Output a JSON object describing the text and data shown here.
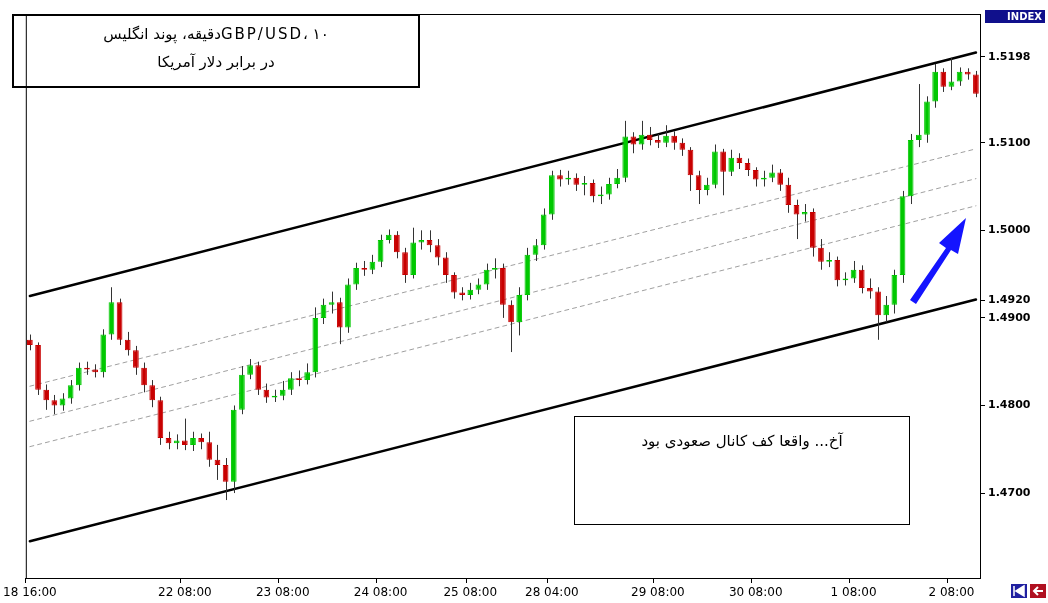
{
  "chart_data": {
    "type": "candlestick",
    "title": "GBP/USD، ۱۰دقیقه، پوند انگلیس در برابر دلار آمریکا",
    "annotations": [
      "آخ... واقعا کف کانال صعودی بود",
      "INDEX"
    ],
    "categories": [
      "18 16:00",
      null,
      null,
      null,
      null,
      null,
      null,
      null,
      null,
      null,
      null,
      null,
      null,
      null,
      null,
      null,
      null,
      null,
      null,
      "22 08:00",
      null,
      null,
      null,
      null,
      null,
      null,
      null,
      null,
      null,
      null,
      null,
      "23 08:00",
      null,
      null,
      null,
      null,
      null,
      null,
      null,
      null,
      null,
      null,
      null,
      "24 08:00",
      null,
      null,
      null,
      null,
      null,
      null,
      null,
      null,
      null,
      null,
      "25 08:00",
      null,
      null,
      null,
      null,
      null,
      null,
      null,
      null,
      null,
      "28 04:00",
      null,
      null,
      null,
      null,
      null,
      null,
      null,
      null,
      null,
      null,
      null,
      null,
      "29 08:00",
      null,
      null,
      null,
      null,
      null,
      null,
      null,
      null,
      null,
      null,
      null,
      "30 08:00",
      null,
      null,
      null,
      null,
      null,
      null,
      null,
      null,
      null,
      null,
      null,
      "1 08:00",
      null,
      null,
      null,
      null,
      null,
      null,
      null,
      null,
      null,
      null,
      null,
      "2 08:00",
      null,
      null,
      null
    ],
    "ohlc": [
      [
        1.4875,
        1.4881,
        1.4863,
        1.4869
      ],
      [
        1.4869,
        1.4872,
        1.4812,
        1.4818
      ],
      [
        1.4818,
        1.4824,
        1.4795,
        1.4806
      ],
      [
        1.4806,
        1.4812,
        1.479,
        1.48
      ],
      [
        1.48,
        1.4814,
        1.4794,
        1.4808
      ],
      [
        1.4808,
        1.4829,
        1.4802,
        1.4823
      ],
      [
        1.4823,
        1.4849,
        1.4817,
        1.4843
      ],
      [
        1.4843,
        1.485,
        1.4835,
        1.4841
      ],
      [
        1.4841,
        1.4847,
        1.4832,
        1.4838
      ],
      [
        1.4838,
        1.4887,
        1.4832,
        1.4881
      ],
      [
        1.4881,
        1.4935,
        1.4875,
        1.4918
      ],
      [
        1.4918,
        1.4922,
        1.4869,
        1.4875
      ],
      [
        1.4875,
        1.4884,
        1.4857,
        1.4863
      ],
      [
        1.4863,
        1.4868,
        1.4835,
        1.4843
      ],
      [
        1.4843,
        1.4849,
        1.4815,
        1.4823
      ],
      [
        1.4823,
        1.4829,
        1.4798,
        1.4806
      ],
      [
        1.4806,
        1.481,
        1.4755,
        1.4763
      ],
      [
        1.4763,
        1.477,
        1.475,
        1.4757
      ],
      [
        1.4757,
        1.4767,
        1.475,
        1.476
      ],
      [
        1.476,
        1.4785,
        1.4749,
        1.4755
      ],
      [
        1.4755,
        1.477,
        1.4748,
        1.4763
      ],
      [
        1.4763,
        1.4768,
        1.475,
        1.4758
      ],
      [
        1.4758,
        1.477,
        1.473,
        1.4738
      ],
      [
        1.4738,
        1.4755,
        1.4715,
        1.4732
      ],
      [
        1.4732,
        1.474,
        1.4692,
        1.4713
      ],
      [
        1.4713,
        1.48,
        1.47,
        1.4795
      ],
      [
        1.4795,
        1.4845,
        1.479,
        1.4835
      ],
      [
        1.4835,
        1.4853,
        1.483,
        1.4846
      ],
      [
        1.4846,
        1.485,
        1.4812,
        1.4818
      ],
      [
        1.4818,
        1.4825,
        1.4803,
        1.4809
      ],
      [
        1.4809,
        1.4818,
        1.4804,
        1.4811
      ],
      [
        1.4811,
        1.4828,
        1.4806,
        1.4818
      ],
      [
        1.4818,
        1.4838,
        1.4812,
        1.4831
      ],
      [
        1.4831,
        1.484,
        1.4822,
        1.4829
      ],
      [
        1.4829,
        1.4848,
        1.4824,
        1.4838
      ],
      [
        1.4838,
        1.4912,
        1.4832,
        1.49
      ],
      [
        1.49,
        1.4922,
        1.4893,
        1.4915
      ],
      [
        1.4915,
        1.493,
        1.4905,
        1.4918
      ],
      [
        1.4918,
        1.4923,
        1.487,
        1.4889
      ],
      [
        1.4889,
        1.4945,
        1.4883,
        1.4938
      ],
      [
        1.4938,
        1.4963,
        1.4932,
        1.4957
      ],
      [
        1.4957,
        1.4965,
        1.4948,
        1.4955
      ],
      [
        1.4955,
        1.4972,
        1.495,
        1.4964
      ],
      [
        1.4964,
        1.4995,
        1.4958,
        1.4989
      ],
      [
        1.4989,
        1.5001,
        1.4985,
        1.4995
      ],
      [
        1.4995,
        1.4999,
        1.4968,
        1.4975
      ],
      [
        1.4975,
        1.498,
        1.494,
        1.4949
      ],
      [
        1.4949,
        1.5003,
        1.4945,
        1.4986
      ],
      [
        1.4986,
        1.5,
        1.4978,
        1.4989
      ],
      [
        1.4989,
        1.5,
        1.4975,
        1.4983
      ],
      [
        1.4983,
        1.499,
        1.496,
        1.4969
      ],
      [
        1.4969,
        1.4975,
        1.494,
        1.4949
      ],
      [
        1.4949,
        1.4952,
        1.4922,
        1.4929
      ],
      [
        1.4929,
        1.4935,
        1.492,
        1.4926
      ],
      [
        1.4926,
        1.494,
        1.4921,
        1.4932
      ],
      [
        1.4932,
        1.4945,
        1.4927,
        1.4938
      ],
      [
        1.4938,
        1.4962,
        1.4932,
        1.4955
      ],
      [
        1.4955,
        1.4968,
        1.4945,
        1.4957
      ],
      [
        1.4957,
        1.4962,
        1.49,
        1.4915
      ],
      [
        1.4915,
        1.492,
        1.4861,
        1.4895
      ],
      [
        1.4895,
        1.4935,
        1.488,
        1.4926
      ],
      [
        1.4926,
        1.498,
        1.492,
        1.4972
      ],
      [
        1.4972,
        1.499,
        1.4965,
        1.4983
      ],
      [
        1.4983,
        1.5025,
        1.4978,
        1.5018
      ],
      [
        1.5018,
        1.5068,
        1.5012,
        1.5063
      ],
      [
        1.5063,
        1.5069,
        1.505,
        1.5058
      ],
      [
        1.5058,
        1.5068,
        1.5052,
        1.506
      ],
      [
        1.506,
        1.5065,
        1.5045,
        1.5052
      ],
      [
        1.5052,
        1.5062,
        1.504,
        1.5054
      ],
      [
        1.5054,
        1.5058,
        1.5032,
        1.5039
      ],
      [
        1.5039,
        1.505,
        1.503,
        1.5041
      ],
      [
        1.5041,
        1.506,
        1.5035,
        1.5053
      ],
      [
        1.5053,
        1.507,
        1.5048,
        1.506
      ],
      [
        1.506,
        1.5125,
        1.5055,
        1.5107
      ],
      [
        1.5107,
        1.5112,
        1.5088,
        1.5098
      ],
      [
        1.5098,
        1.5125,
        1.5092,
        1.5109
      ],
      [
        1.5109,
        1.5118,
        1.5097,
        1.5103
      ],
      [
        1.5103,
        1.511,
        1.5094,
        1.51
      ],
      [
        1.51,
        1.512,
        1.5095,
        1.5108
      ],
      [
        1.5108,
        1.5113,
        1.5092,
        1.51
      ],
      [
        1.51,
        1.5105,
        1.5085,
        1.5092
      ],
      [
        1.5092,
        1.5095,
        1.5045,
        1.5063
      ],
      [
        1.5063,
        1.5068,
        1.503,
        1.5046
      ],
      [
        1.5046,
        1.506,
        1.504,
        1.5052
      ],
      [
        1.5052,
        1.5098,
        1.5048,
        1.509
      ],
      [
        1.509,
        1.5093,
        1.504,
        1.5067
      ],
      [
        1.5067,
        1.5092,
        1.5062,
        1.5083
      ],
      [
        1.5083,
        1.5088,
        1.507,
        1.5077
      ],
      [
        1.5077,
        1.5082,
        1.5062,
        1.5069
      ],
      [
        1.5069,
        1.5072,
        1.505,
        1.5058
      ],
      [
        1.5058,
        1.5068,
        1.505,
        1.506
      ],
      [
        1.506,
        1.5075,
        1.5055,
        1.5066
      ],
      [
        1.5066,
        1.507,
        1.5045,
        1.5052
      ],
      [
        1.5052,
        1.506,
        1.502,
        1.5029
      ],
      [
        1.5029,
        1.5035,
        1.499,
        1.5018
      ],
      [
        1.5018,
        1.503,
        1.501,
        1.5021
      ],
      [
        1.5021,
        1.5025,
        1.497,
        1.498
      ],
      [
        1.498,
        1.499,
        1.4955,
        1.4964
      ],
      [
        1.4964,
        1.4975,
        1.4958,
        1.4966
      ],
      [
        1.4966,
        1.497,
        1.4936,
        1.4943
      ],
      [
        1.4943,
        1.4952,
        1.4937,
        1.4945
      ],
      [
        1.4945,
        1.4965,
        1.494,
        1.4955
      ],
      [
        1.4955,
        1.496,
        1.4928,
        1.4934
      ],
      [
        1.4934,
        1.4945,
        1.4922,
        1.493
      ],
      [
        1.493,
        1.4935,
        1.4875,
        1.4903
      ],
      [
        1.4903,
        1.4925,
        1.4895,
        1.4915
      ],
      [
        1.4915,
        1.4955,
        1.4905,
        1.4949
      ],
      [
        1.4949,
        1.5045,
        1.494,
        1.5039
      ],
      [
        1.5039,
        1.511,
        1.503,
        1.5103
      ],
      [
        1.5103,
        1.5167,
        1.5095,
        1.5109
      ],
      [
        1.5109,
        1.5153,
        1.51,
        1.5147
      ],
      [
        1.5147,
        1.519,
        1.514,
        1.5181
      ],
      [
        1.5181,
        1.5185,
        1.5158,
        1.5164
      ],
      [
        1.5164,
        1.5197,
        1.516,
        1.517
      ],
      [
        1.517,
        1.5186,
        1.5165,
        1.5181
      ],
      [
        1.5181,
        1.5185,
        1.5172,
        1.5178
      ],
      [
        1.5178,
        1.5182,
        1.5152,
        1.5156
      ]
    ],
    "colors": [
      "#c80000",
      "#c80000",
      "#c80000",
      "#c80000",
      "#00c800",
      "#00c800",
      "#00c800",
      "#c80000",
      "#c80000",
      "#00c800",
      "#00c800",
      "#c80000",
      "#c80000",
      "#c80000",
      "#c80000",
      "#c80000",
      "#c80000",
      "#c80000",
      "#00c800",
      "#c80000",
      "#00c800",
      "#c80000",
      "#c80000",
      "#c80000",
      "#c80000",
      "#00c800",
      "#00c800",
      "#00c800",
      "#c80000",
      "#c80000",
      "#00c800",
      "#00c800",
      "#00c800",
      "#c80000",
      "#00c800",
      "#00c800",
      "#00c800",
      "#00c800",
      "#c80000",
      "#00c800",
      "#00c800",
      "#c80000",
      "#00c800",
      "#00c800",
      "#00c800",
      "#c80000",
      "#c80000",
      "#00c800",
      "#00c800",
      "#c80000",
      "#c80000",
      "#c80000",
      "#c80000",
      "#c80000",
      "#00c800",
      "#00c800",
      "#00c800",
      "#00c800",
      "#c80000",
      "#c80000",
      "#00c800",
      "#00c800",
      "#00c800",
      "#00c800",
      "#00c800",
      "#c80000",
      "#00c800",
      "#c80000",
      "#00c800",
      "#c80000",
      "#00c800",
      "#00c800",
      "#00c800",
      "#00c800",
      "#c80000",
      "#00c800",
      "#c80000",
      "#c80000",
      "#00c800",
      "#c80000",
      "#c80000",
      "#c80000",
      "#c80000",
      "#00c800",
      "#00c800",
      "#c80000",
      "#00c800",
      "#c80000",
      "#c80000",
      "#c80000",
      "#00c800",
      "#00c800",
      "#c80000",
      "#c80000",
      "#c80000",
      "#00c800",
      "#c80000",
      "#c80000",
      "#00c800",
      "#c80000",
      "#00c800",
      "#00c800",
      "#c80000",
      "#c80000",
      "#c80000",
      "#00c800",
      "#00c800",
      "#00c800",
      "#00c800",
      "#00c800",
      "#00c800",
      "#00c800",
      "#c80000",
      "#00c800",
      "#00c800",
      "#c80000",
      "#c80000"
    ],
    "series": [
      {
        "type": "line",
        "color": "#000000",
        "line_style": "solid",
        "values": [
          1.4925,
          null,
          null,
          null,
          null,
          null,
          null,
          null,
          null,
          null,
          null,
          null,
          null,
          null,
          null,
          null,
          null,
          null,
          null,
          null,
          null,
          null,
          null,
          null,
          null,
          null,
          null,
          null,
          null,
          null,
          null,
          null,
          null,
          null,
          null,
          null,
          null,
          null,
          null,
          null,
          null,
          null,
          null,
          null,
          null,
          null,
          null,
          null,
          null,
          null,
          null,
          null,
          null,
          null,
          null,
          null,
          null,
          null,
          null,
          null,
          null,
          null,
          null,
          null,
          null,
          null,
          null,
          null,
          null,
          null,
          null,
          null,
          null,
          null,
          null,
          null,
          null,
          null,
          null,
          null,
          null,
          null,
          null,
          null,
          null,
          null,
          null,
          null,
          null,
          null,
          null,
          null,
          null,
          null,
          null,
          null,
          null,
          null,
          null,
          null,
          null,
          null,
          null,
          null,
          null,
          null,
          null,
          null,
          null,
          null,
          null,
          null,
          null,
          null,
          null,
          null,
          1.5203
        ]
      },
      {
        "type": "line",
        "color": "#000000",
        "line_style": "solid",
        "values": [
          1.4645,
          null,
          null,
          null,
          null,
          null,
          null,
          null,
          null,
          null,
          null,
          null,
          null,
          null,
          null,
          null,
          null,
          null,
          null,
          null,
          null,
          null,
          null,
          null,
          null,
          null,
          null,
          null,
          null,
          null,
          null,
          null,
          null,
          null,
          null,
          null,
          null,
          null,
          null,
          null,
          null,
          null,
          null,
          null,
          null,
          null,
          null,
          null,
          null,
          null,
          null,
          null,
          null,
          null,
          null,
          null,
          null,
          null,
          null,
          null,
          null,
          null,
          null,
          null,
          null,
          null,
          null,
          null,
          null,
          null,
          null,
          null,
          null,
          null,
          null,
          null,
          null,
          null,
          null,
          null,
          null,
          null,
          null,
          null,
          null,
          null,
          null,
          null,
          null,
          null,
          null,
          null,
          null,
          null,
          null,
          null,
          null,
          null,
          null,
          null,
          null,
          null,
          null,
          null,
          null,
          null,
          null,
          null,
          null,
          null,
          null,
          null,
          null,
          null,
          null,
          null,
          1.4921
        ]
      },
      {
        "type": "line",
        "color": "#a0a0a0",
        "line_style": "dashed",
        "values": [
          1.4822,
          null,
          null,
          null,
          null,
          null,
          null,
          null,
          null,
          null,
          null,
          null,
          null,
          null,
          null,
          null,
          null,
          null,
          null,
          null,
          null,
          null,
          null,
          null,
          null,
          null,
          null,
          null,
          null,
          null,
          null,
          null,
          null,
          null,
          null,
          null,
          null,
          null,
          null,
          null,
          null,
          null,
          null,
          null,
          null,
          null,
          null,
          null,
          null,
          null,
          null,
          null,
          null,
          null,
          null,
          null,
          null,
          null,
          null,
          null,
          null,
          null,
          null,
          null,
          null,
          null,
          null,
          null,
          null,
          null,
          null,
          null,
          null,
          null,
          null,
          null,
          null,
          null,
          null,
          null,
          null,
          null,
          null,
          null,
          null,
          null,
          null,
          null,
          null,
          null,
          null,
          null,
          null,
          null,
          null,
          null,
          null,
          null,
          null,
          null,
          null,
          null,
          null,
          null,
          null,
          null,
          null,
          null,
          null,
          null,
          null,
          null,
          null,
          null,
          null,
          null,
          1.5093
        ]
      },
      {
        "type": "line",
        "color": "#a0a0a0",
        "line_style": "dashed",
        "values": [
          1.4782,
          null,
          null,
          null,
          null,
          null,
          null,
          null,
          null,
          null,
          null,
          null,
          null,
          null,
          null,
          null,
          null,
          null,
          null,
          null,
          null,
          null,
          null,
          null,
          null,
          null,
          null,
          null,
          null,
          null,
          null,
          null,
          null,
          null,
          null,
          null,
          null,
          null,
          null,
          null,
          null,
          null,
          null,
          null,
          null,
          null,
          null,
          null,
          null,
          null,
          null,
          null,
          null,
          null,
          null,
          null,
          null,
          null,
          null,
          null,
          null,
          null,
          null,
          null,
          null,
          null,
          null,
          null,
          null,
          null,
          null,
          null,
          null,
          null,
          null,
          null,
          null,
          null,
          null,
          null,
          null,
          null,
          null,
          null,
          null,
          null,
          null,
          null,
          null,
          null,
          null,
          null,
          null,
          null,
          null,
          null,
          null,
          null,
          null,
          null,
          null,
          null,
          null,
          null,
          null,
          null,
          null,
          null,
          null,
          null,
          null,
          null,
          null,
          null,
          null,
          null,
          1.5059
        ]
      },
      {
        "type": "line",
        "color": "#a0a0a0",
        "line_style": "dashed",
        "values": [
          1.4753,
          null,
          null,
          null,
          null,
          null,
          null,
          null,
          null,
          null,
          null,
          null,
          null,
          null,
          null,
          null,
          null,
          null,
          null,
          null,
          null,
          null,
          null,
          null,
          null,
          null,
          null,
          null,
          null,
          null,
          null,
          null,
          null,
          null,
          null,
          null,
          null,
          null,
          null,
          null,
          null,
          null,
          null,
          null,
          null,
          null,
          null,
          null,
          null,
          null,
          null,
          null,
          null,
          null,
          null,
          null,
          null,
          null,
          null,
          null,
          null,
          null,
          null,
          null,
          null,
          null,
          null,
          null,
          null,
          null,
          null,
          null,
          null,
          null,
          null,
          null,
          null,
          null,
          null,
          null,
          null,
          null,
          null,
          null,
          null,
          null,
          null,
          null,
          null,
          null,
          null,
          null,
          null,
          null,
          null,
          null,
          null,
          null,
          null,
          null,
          null,
          null,
          null,
          null,
          null,
          null,
          null,
          null,
          null,
          null,
          null,
          null,
          null,
          null,
          null,
          null,
          1.5028
        ]
      }
    ],
    "ylim": [
      1.4603,
      1.5247
    ],
    "yticks": [
      {
        "value": 1.47,
        "label": "1.4700"
      },
      {
        "value": 1.48,
        "label": "1.4800"
      },
      {
        "value": 1.49,
        "label": "1.4900"
      },
      {
        "value": 1.492,
        "label": "1.4920"
      },
      {
        "value": 1.5,
        "label": "1.5000"
      },
      {
        "value": 1.51,
        "label": "1.5100"
      },
      {
        "value": 1.5198,
        "label": "1.5198"
      }
    ],
    "grid": false,
    "legend": false
  }
}
